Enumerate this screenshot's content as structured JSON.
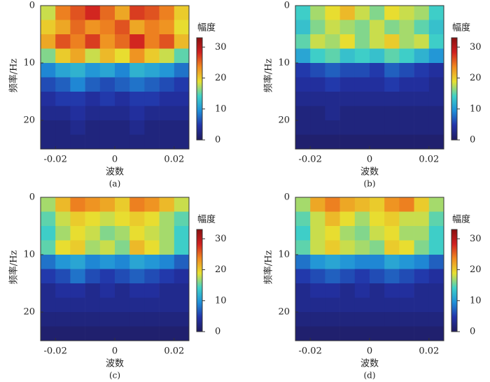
{
  "chart_data": [
    {
      "type": "heatmap",
      "caption": "(a)",
      "xlabel": "波数",
      "ylabel": "频率/Hz",
      "colorbar_label": "幅度",
      "x_edges": [
        -0.025,
        -0.02,
        -0.015,
        -0.01,
        -0.005,
        0,
        0.005,
        0.01,
        0.015,
        0.02,
        0.025
      ],
      "y_edges": [
        0,
        2.5,
        5,
        7.5,
        10,
        12.5,
        15,
        17.5,
        20,
        22.5,
        25
      ],
      "z": [
        [
          18,
          24,
          26,
          28,
          25,
          22,
          27,
          26,
          24,
          20
        ],
        [
          20,
          22,
          25,
          23,
          24,
          26,
          22,
          24,
          23,
          19
        ],
        [
          22,
          26,
          24,
          27,
          23,
          25,
          28,
          24,
          26,
          21
        ],
        [
          16,
          20,
          22,
          18,
          21,
          19,
          23,
          20,
          18,
          15
        ],
        [
          9,
          11,
          12,
          10,
          11,
          9,
          12,
          11,
          10,
          8
        ],
        [
          6,
          7,
          9,
          7,
          6,
          7,
          8,
          7,
          6,
          5
        ],
        [
          4,
          5,
          5,
          4,
          5,
          4,
          5,
          5,
          4,
          4
        ],
        [
          3,
          3,
          4,
          3,
          3,
          3,
          4,
          3,
          3,
          3
        ],
        [
          2,
          2,
          3,
          2,
          2,
          2,
          3,
          2,
          2,
          2
        ],
        [
          2,
          2,
          2,
          2,
          2,
          2,
          2,
          2,
          2,
          2
        ]
      ],
      "xlim": [
        -0.025,
        0.025
      ],
      "ylim": [
        0,
        25
      ],
      "xticks": [
        -0.02,
        0,
        0.02
      ],
      "yticks": [
        0,
        10,
        20
      ],
      "clim": [
        0,
        33
      ],
      "cticks": [
        0,
        10,
        20,
        30
      ],
      "colormap": [
        "#1f1b5e",
        "#2233a8",
        "#1f8fd8",
        "#3fd0c8",
        "#e8e030",
        "#f08a20",
        "#d02020",
        "#8a1010"
      ]
    },
    {
      "type": "heatmap",
      "caption": "(b)",
      "xlabel": "波数",
      "ylabel": "频率/Hz",
      "colorbar_label": "幅度",
      "x_edges": [
        -0.025,
        -0.02,
        -0.015,
        -0.01,
        -0.005,
        0,
        0.005,
        0.01,
        0.015,
        0.02,
        0.025
      ],
      "y_edges": [
        0,
        2.5,
        5,
        7.5,
        10,
        12.5,
        15,
        17.5,
        20,
        22.5,
        25
      ],
      "z": [
        [
          14,
          17,
          19,
          21,
          18,
          16,
          19,
          18,
          17,
          14
        ],
        [
          13,
          16,
          18,
          17,
          16,
          18,
          16,
          17,
          15,
          13
        ],
        [
          15,
          18,
          17,
          19,
          16,
          18,
          20,
          17,
          18,
          14
        ],
        [
          11,
          14,
          15,
          13,
          14,
          13,
          15,
          14,
          12,
          10
        ],
        [
          5,
          6,
          7,
          6,
          6,
          5,
          7,
          6,
          5,
          4
        ],
        [
          4,
          4,
          5,
          4,
          4,
          4,
          5,
          4,
          4,
          3
        ],
        [
          3,
          3,
          3,
          3,
          3,
          3,
          3,
          3,
          3,
          3
        ],
        [
          2,
          2,
          3,
          2,
          2,
          2,
          2,
          2,
          2,
          2
        ],
        [
          2,
          2,
          2,
          2,
          2,
          2,
          2,
          2,
          2,
          2
        ],
        [
          1,
          1,
          1,
          1,
          1,
          1,
          1,
          1,
          1,
          1
        ]
      ],
      "xlim": [
        -0.025,
        0.025
      ],
      "ylim": [
        0,
        25
      ],
      "xticks": [
        -0.02,
        0,
        0.02
      ],
      "yticks": [
        0,
        10,
        20
      ],
      "clim": [
        0,
        33
      ],
      "cticks": [
        0,
        10,
        20,
        30
      ],
      "colormap": [
        "#1f1b5e",
        "#2233a8",
        "#1f8fd8",
        "#3fd0c8",
        "#e8e030",
        "#f08a20",
        "#d02020",
        "#8a1010"
      ]
    },
    {
      "type": "heatmap",
      "caption": "(c)",
      "xlabel": "波数",
      "ylabel": "频率/Hz",
      "colorbar_label": "幅度",
      "x_edges": [
        -0.025,
        -0.02,
        -0.015,
        -0.01,
        -0.005,
        0,
        0.005,
        0.01,
        0.015,
        0.02,
        0.025
      ],
      "y_edges": [
        0,
        2.5,
        5,
        7.5,
        10,
        12.5,
        15,
        17.5,
        20,
        22.5,
        25
      ],
      "z": [
        [
          17,
          21,
          24,
          23,
          22,
          20,
          24,
          23,
          21,
          18
        ],
        [
          15,
          18,
          20,
          19,
          18,
          19,
          20,
          19,
          17,
          15
        ],
        [
          14,
          17,
          19,
          18,
          16,
          17,
          19,
          18,
          17,
          14
        ],
        [
          15,
          19,
          20,
          17,
          18,
          16,
          21,
          19,
          17,
          14
        ],
        [
          8,
          10,
          11,
          9,
          10,
          9,
          11,
          10,
          9,
          7
        ],
        [
          5,
          6,
          8,
          6,
          5,
          6,
          7,
          6,
          5,
          4
        ],
        [
          3,
          4,
          4,
          3,
          4,
          3,
          4,
          4,
          3,
          3
        ],
        [
          3,
          3,
          3,
          3,
          3,
          3,
          3,
          3,
          3,
          3
        ],
        [
          2,
          2,
          2,
          2,
          2,
          2,
          2,
          2,
          2,
          2
        ],
        [
          1,
          1,
          1,
          1,
          1,
          1,
          1,
          1,
          1,
          1
        ]
      ],
      "xlim": [
        -0.025,
        0.025
      ],
      "ylim": [
        0,
        25
      ],
      "xticks": [
        -0.02,
        0,
        0.02
      ],
      "yticks": [
        0,
        10,
        20
      ],
      "clim": [
        0,
        33
      ],
      "cticks": [
        0,
        10,
        20,
        30
      ],
      "colormap": [
        "#1f1b5e",
        "#2233a8",
        "#1f8fd8",
        "#3fd0c8",
        "#e8e030",
        "#f08a20",
        "#d02020",
        "#8a1010"
      ]
    },
    {
      "type": "heatmap",
      "caption": "(d)",
      "xlabel": "波数",
      "ylabel": "频率/Hz",
      "colorbar_label": "幅度",
      "x_edges": [
        -0.025,
        -0.02,
        -0.015,
        -0.01,
        -0.005,
        0,
        0.005,
        0.01,
        0.015,
        0.02,
        0.025
      ],
      "y_edges": [
        0,
        2.5,
        5,
        7.5,
        10,
        12.5,
        15,
        17.5,
        20,
        22.5,
        25
      ],
      "z": [
        [
          17,
          22,
          24,
          22,
          21,
          20,
          23,
          24,
          20,
          17
        ],
        [
          15,
          18,
          21,
          19,
          17,
          19,
          20,
          18,
          18,
          15
        ],
        [
          14,
          18,
          19,
          17,
          16,
          18,
          19,
          17,
          17,
          14
        ],
        [
          15,
          18,
          20,
          18,
          17,
          16,
          20,
          19,
          16,
          14
        ],
        [
          8,
          10,
          11,
          10,
          9,
          9,
          11,
          10,
          9,
          7
        ],
        [
          5,
          6,
          7,
          6,
          5,
          6,
          7,
          6,
          5,
          4
        ],
        [
          3,
          4,
          4,
          3,
          4,
          3,
          4,
          4,
          3,
          3
        ],
        [
          3,
          3,
          3,
          3,
          3,
          3,
          3,
          3,
          3,
          3
        ],
        [
          2,
          2,
          2,
          2,
          2,
          2,
          2,
          2,
          2,
          2
        ],
        [
          1,
          1,
          1,
          1,
          1,
          1,
          1,
          1,
          1,
          1
        ]
      ],
      "xlim": [
        -0.025,
        0.025
      ],
      "ylim": [
        0,
        25
      ],
      "xticks": [
        -0.02,
        0,
        0.02
      ],
      "yticks": [
        0,
        10,
        20
      ],
      "clim": [
        0,
        33
      ],
      "cticks": [
        0,
        10,
        20,
        30
      ],
      "colormap": [
        "#1f1b5e",
        "#2233a8",
        "#1f8fd8",
        "#3fd0c8",
        "#e8e030",
        "#f08a20",
        "#d02020",
        "#8a1010"
      ]
    }
  ]
}
